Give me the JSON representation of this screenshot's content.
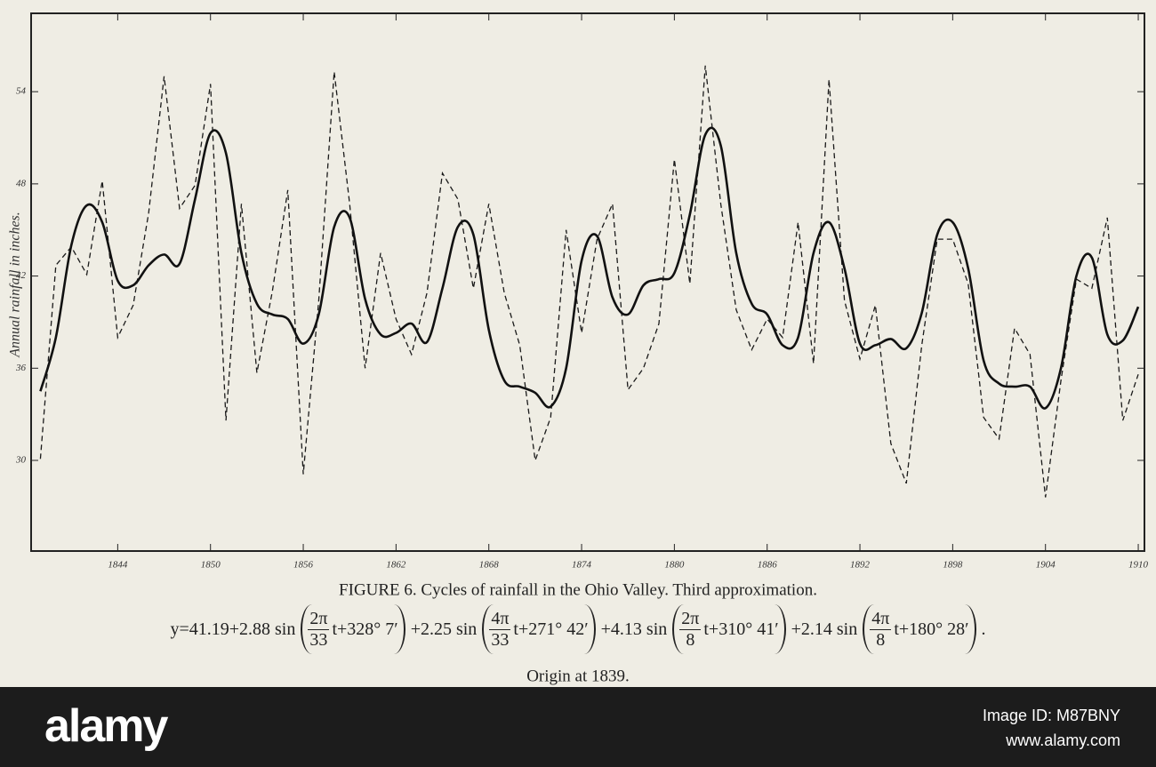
{
  "chart_data": {
    "type": "line",
    "y_label": "Annual rainfall in inches.",
    "caption": "FIGURE 6. Cycles of rainfall in the Ohio Valley.  Third approximation.",
    "equation": {
      "lead": "y=41.19+2.88 sin",
      "terms": [
        {
          "num": "2π",
          "den": "33",
          "arg": "t+328° 7′",
          "after": "+2.25 sin"
        },
        {
          "num": "4π",
          "den": "33",
          "arg": "t+271° 42′",
          "after": "+4.13 sin"
        },
        {
          "num": "2π",
          "den": "8",
          "arg": "t+310° 41′",
          "after": "+2.14 sin"
        },
        {
          "num": "4π",
          "den": "8",
          "arg": "t+180° 28′",
          "after": "."
        }
      ]
    },
    "origin_note": "Origin at 1839.",
    "x": [
      1839,
      1840,
      1841,
      1842,
      1843,
      1844,
      1845,
      1846,
      1847,
      1848,
      1849,
      1850,
      1851,
      1852,
      1853,
      1854,
      1855,
      1856,
      1857,
      1858,
      1859,
      1860,
      1861,
      1862,
      1863,
      1864,
      1865,
      1866,
      1867,
      1868,
      1869,
      1870,
      1871,
      1872,
      1873,
      1874,
      1875,
      1876,
      1877,
      1878,
      1879,
      1880,
      1881,
      1882,
      1883,
      1884,
      1885,
      1886,
      1887,
      1888,
      1889,
      1890,
      1891,
      1892,
      1893,
      1894,
      1895,
      1896,
      1897,
      1898,
      1899,
      1900,
      1901,
      1902,
      1903,
      1904,
      1905,
      1906,
      1907,
      1908,
      1909,
      1910
    ],
    "series": [
      {
        "color": "#1a1a1a",
        "dashed": true,
        "values": [
          30.1,
          42.7,
          43.9,
          42.1,
          48.2,
          38.0,
          40.1,
          46.1,
          55.0,
          46.4,
          47.9,
          54.5,
          32.6,
          46.7,
          35.7,
          41.0,
          47.6,
          29.1,
          40.4,
          55.3,
          46.7,
          36.0,
          43.5,
          39.2,
          36.9,
          40.9,
          48.7,
          47.0,
          41.2,
          46.7,
          40.9,
          37.5,
          30.0,
          32.8,
          45.0,
          38.3,
          44.4,
          46.7,
          34.6,
          36.0,
          38.9,
          49.6,
          41.5,
          55.7,
          46.7,
          39.8,
          37.2,
          39.2,
          38.0,
          45.5,
          36.3,
          54.8,
          40.4,
          36.6,
          40.1,
          31.1,
          28.5,
          37.5,
          44.4,
          44.4,
          41.5,
          32.8,
          31.4,
          38.6,
          36.9,
          27.6,
          35.2,
          41.8,
          41.2,
          45.8,
          32.6,
          35.6
        ]
      },
      {
        "color": "#111111",
        "dashed": false,
        "values": [
          34.5,
          38.0,
          44.0,
          46.6,
          45.5,
          41.7,
          41.4,
          42.7,
          43.4,
          42.8,
          47.0,
          51.3,
          50.0,
          43.5,
          40.2,
          39.5,
          39.2,
          37.6,
          39.5,
          45.2,
          45.8,
          40.5,
          38.2,
          38.3,
          38.9,
          37.7,
          41.2,
          45.2,
          44.7,
          38.5,
          35.2,
          34.8,
          34.4,
          33.5,
          36.0,
          43.0,
          44.6,
          40.6,
          39.5,
          41.4,
          41.8,
          42.2,
          46.0,
          51.2,
          50.5,
          43.5,
          40.2,
          39.5,
          37.5,
          38.0,
          43.5,
          45.5,
          42.5,
          37.6,
          37.5,
          37.9,
          37.3,
          39.6,
          44.7,
          45.5,
          42.5,
          36.5,
          35.0,
          34.8,
          34.8,
          33.4,
          36.0,
          42.0,
          43.2,
          38.2,
          37.8,
          40.0
        ]
      }
    ],
    "xlim": [
      1838.4,
      1910.4
    ],
    "ylim": [
      24.1,
      59.1
    ],
    "xticks": [
      1844,
      1850,
      1856,
      1862,
      1868,
      1874,
      1880,
      1886,
      1892,
      1898,
      1904,
      1910
    ],
    "yticks": [
      30,
      36,
      42,
      48,
      54
    ]
  },
  "watermark": {
    "logo": "alamy",
    "image_id": "Image ID: M87BNY",
    "site": "www.alamy.com"
  }
}
